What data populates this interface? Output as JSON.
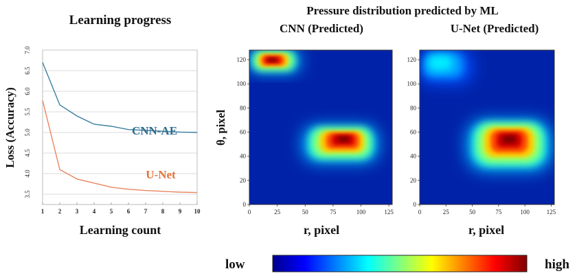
{
  "heading_right": "Pressure distribution predicted by ML",
  "colors": {
    "cnn_ae": "#3a7fa0",
    "u_net": "#ea8560",
    "cnn_ae_label": "#2f6b8f",
    "u_net_label": "#e0733b",
    "map_background": "#0022a8"
  },
  "chart_data": [
    {
      "type": "line",
      "title": "Learning progress",
      "xlabel": "Learning count",
      "ylabel": "Loss (Accuracy)",
      "x": [
        1,
        2,
        3,
        4,
        5,
        6,
        7,
        8,
        9,
        10
      ],
      "xlim": [
        1,
        10
      ],
      "ylim": [
        3.25,
        7.0
      ],
      "yticks": [
        "3.5",
        "4.0",
        "4.5",
        "5.0",
        "5.5",
        "6.0",
        "6.5",
        "7.0"
      ],
      "xticks": [
        "1",
        "2",
        "3",
        "4",
        "5",
        "6",
        "7",
        "8",
        "9",
        "10"
      ],
      "grid": true,
      "series": [
        {
          "name": "CNN-AE",
          "values": [
            6.7,
            5.67,
            5.4,
            5.2,
            5.15,
            5.07,
            5.05,
            5.03,
            5.01,
            5.0
          ]
        },
        {
          "name": "U-Net",
          "values": [
            5.78,
            4.1,
            3.87,
            3.77,
            3.67,
            3.62,
            3.59,
            3.57,
            3.55,
            3.54
          ]
        }
      ]
    },
    {
      "type": "heatmap",
      "title": "CNN (Predicted)",
      "xlabel": "r, pixel",
      "ylabel": "θ, pixel",
      "xlim": [
        0,
        128
      ],
      "ylim": [
        0,
        128
      ],
      "xticks": [
        "0",
        "25",
        "50",
        "75",
        "100",
        "125"
      ],
      "yticks": [
        "0",
        "20",
        "40",
        "60",
        "80",
        "100",
        "120"
      ],
      "hot_regions": [
        {
          "r": [
            0,
            45
          ],
          "theta": [
            110,
            128
          ],
          "peak_r": 20,
          "peak_theta": 120,
          "level": "high"
        },
        {
          "r": [
            48,
            115
          ],
          "theta": [
            35,
            65
          ],
          "peak_r": 85,
          "peak_theta": 55,
          "level": "high"
        }
      ]
    },
    {
      "type": "heatmap",
      "title": "U-Net (Predicted)",
      "xlabel": "r, pixel",
      "ylabel": "",
      "xlim": [
        0,
        128
      ],
      "ylim": [
        0,
        128
      ],
      "xticks": [
        "0",
        "25",
        "50",
        "75",
        "100",
        "125"
      ],
      "yticks": [
        "0",
        "20",
        "40",
        "60",
        "80",
        "100",
        "120"
      ],
      "hot_regions": [
        {
          "r": [
            0,
            50
          ],
          "theta": [
            100,
            128
          ],
          "peak_r": 15,
          "peak_theta": 120,
          "level": "low"
        },
        {
          "r": [
            45,
            125
          ],
          "theta": [
            28,
            70
          ],
          "peak_r": 85,
          "peak_theta": 55,
          "level": "high"
        }
      ]
    }
  ],
  "colorbar": {
    "low_label": "low",
    "high_label": "high",
    "stops": [
      "#00008f",
      "#0000ff",
      "#0080ff",
      "#00ffff",
      "#80ff80",
      "#ffff00",
      "#ff8000",
      "#ff0000",
      "#800000"
    ]
  }
}
